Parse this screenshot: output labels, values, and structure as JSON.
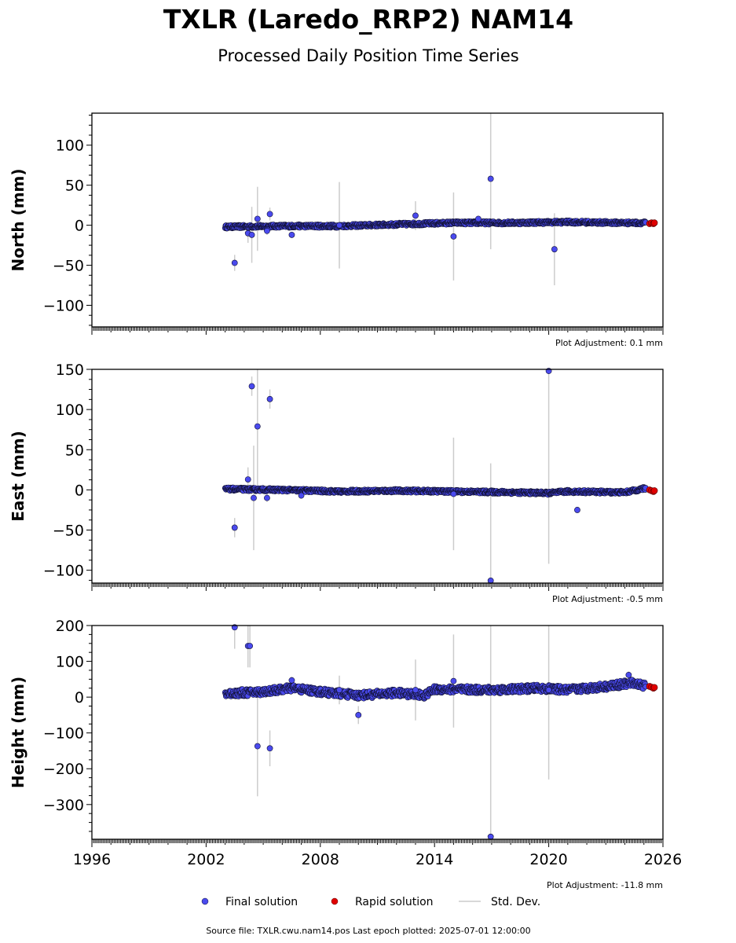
{
  "title": "TXLR (Laredo_RRP2) NAM14",
  "subtitle": "Processed Daily Position Time Series",
  "source_text": "Source file: TXLR.cwu.nam14.pos  Last epoch plotted: 2025-07-01 12:00:00",
  "legend": {
    "final_label": "Final solution",
    "rapid_label": "Rapid solution",
    "std_label": "Std. Dev."
  },
  "colors": {
    "final": "#4a4aee",
    "rapid": "#e00000",
    "std": "#cccccc",
    "point_edge": "#111133"
  },
  "chart_data": [
    {
      "type": "scatter",
      "ylabel": "North (mm)",
      "adjustment": "Plot Adjustment: 0.1 mm",
      "xlim": [
        1996,
        2026
      ],
      "ylim": [
        -127,
        140
      ],
      "yticks": [
        -100,
        -50,
        0,
        50,
        100
      ],
      "ytick_labels": [
        "−100",
        "−50",
        "0",
        "50",
        "100"
      ],
      "trend": [
        [
          2003.0,
          -2
        ],
        [
          2006.0,
          -1
        ],
        [
          2009.0,
          -1
        ],
        [
          2012.0,
          1
        ],
        [
          2015.0,
          3
        ],
        [
          2018.0,
          3
        ],
        [
          2021.0,
          4
        ],
        [
          2024.0,
          3
        ],
        [
          2025.1,
          3
        ]
      ],
      "outliers": [
        {
          "x": 2003.5,
          "y": -47,
          "err": 10
        },
        {
          "x": 2004.2,
          "y": -10,
          "err": 12
        },
        {
          "x": 2004.4,
          "y": -12,
          "err": 35
        },
        {
          "x": 2004.7,
          "y": 8,
          "err": 40
        },
        {
          "x": 2005.2,
          "y": -7,
          "err": 5
        },
        {
          "x": 2005.35,
          "y": 14,
          "err": 8
        },
        {
          "x": 2006.5,
          "y": -12,
          "err": 4
        },
        {
          "x": 2009.0,
          "y": 0,
          "err": 54
        },
        {
          "x": 2013.0,
          "y": 12,
          "err": 18
        },
        {
          "x": 2015.0,
          "y": -14,
          "err": 55
        },
        {
          "x": 2016.3,
          "y": 8,
          "err": 4
        },
        {
          "x": 2016.95,
          "y": 58,
          "err": 88
        },
        {
          "x": 2020.3,
          "y": -30,
          "err": 45
        }
      ],
      "band_std": 2,
      "rapid": [
        [
          2025.3,
          2
        ],
        [
          2025.4,
          3
        ],
        [
          2025.5,
          2
        ],
        [
          2025.55,
          3
        ]
      ]
    },
    {
      "type": "scatter",
      "ylabel": "East (mm)",
      "adjustment": "Plot Adjustment: -0.5 mm",
      "xlim": [
        1996,
        2026
      ],
      "ylim": [
        -116,
        150
      ],
      "yticks": [
        -100,
        -50,
        0,
        50,
        100,
        150
      ],
      "ytick_labels": [
        "−100",
        "−50",
        "0",
        "50",
        "100",
        "150"
      ],
      "trend": [
        [
          2003.0,
          1
        ],
        [
          2006.0,
          0
        ],
        [
          2009.0,
          -2
        ],
        [
          2012.0,
          -1
        ],
        [
          2015.0,
          -2
        ],
        [
          2018.0,
          -3
        ],
        [
          2020.0,
          -4
        ],
        [
          2021.0,
          -2
        ],
        [
          2024.0,
          -3
        ],
        [
          2025.1,
          2
        ]
      ],
      "outliers": [
        {
          "x": 2003.5,
          "y": -47,
          "err": 12
        },
        {
          "x": 2004.2,
          "y": 13,
          "err": 15
        },
        {
          "x": 2004.4,
          "y": 129,
          "err": 12
        },
        {
          "x": 2004.5,
          "y": -10,
          "err": 65
        },
        {
          "x": 2004.7,
          "y": 79,
          "err": 75
        },
        {
          "x": 2005.2,
          "y": -10,
          "err": 5
        },
        {
          "x": 2005.35,
          "y": 113,
          "err": 12
        },
        {
          "x": 2007.0,
          "y": -7,
          "err": 4
        },
        {
          "x": 2015.0,
          "y": -5,
          "err": 70
        },
        {
          "x": 2016.95,
          "y": -113,
          "err": 146
        },
        {
          "x": 2020.0,
          "y": 148,
          "err": 240
        },
        {
          "x": 2021.5,
          "y": -25,
          "err": 4
        }
      ],
      "band_std": 2,
      "rapid": [
        [
          2025.3,
          0
        ],
        [
          2025.4,
          -1
        ],
        [
          2025.5,
          -2
        ],
        [
          2025.55,
          -1
        ]
      ]
    },
    {
      "type": "scatter",
      "ylabel": "Height (mm)",
      "adjustment": "Plot Adjustment: -11.8 mm",
      "xlim": [
        1996,
        2026
      ],
      "ylim": [
        -397,
        200
      ],
      "yticks": [
        -300,
        -200,
        -100,
        0,
        100,
        200
      ],
      "ytick_labels": [
        "−300",
        "−200",
        "−100",
        "0",
        "100",
        "200"
      ],
      "xticks": [
        1996,
        2002,
        2008,
        2014,
        2020,
        2026
      ],
      "xtick_labels": [
        "1996",
        "2002",
        "2008",
        "2014",
        "2020",
        "2026"
      ],
      "trend": [
        [
          2003.0,
          10
        ],
        [
          2005.0,
          15
        ],
        [
          2006.5,
          25
        ],
        [
          2008.0,
          15
        ],
        [
          2010.0,
          5
        ],
        [
          2012.0,
          12
        ],
        [
          2013.5,
          5
        ],
        [
          2014.0,
          22
        ],
        [
          2017.0,
          20
        ],
        [
          2019.5,
          25
        ],
        [
          2021.0,
          20
        ],
        [
          2023.0,
          30
        ],
        [
          2024.5,
          40
        ],
        [
          2025.1,
          30
        ]
      ],
      "outliers": [
        {
          "x": 2003.5,
          "y": 195,
          "err": 60
        },
        {
          "x": 2004.2,
          "y": 143,
          "err": 60
        },
        {
          "x": 2004.3,
          "y": 143,
          "err": 60
        },
        {
          "x": 2004.7,
          "y": -137,
          "err": 140
        },
        {
          "x": 2005.35,
          "y": -143,
          "err": 50
        },
        {
          "x": 2006.5,
          "y": 47,
          "err": 10
        },
        {
          "x": 2009.0,
          "y": 20,
          "err": 40
        },
        {
          "x": 2010.0,
          "y": -50,
          "err": 25
        },
        {
          "x": 2013.0,
          "y": 20,
          "err": 85
        },
        {
          "x": 2015.0,
          "y": 45,
          "err": 130
        },
        {
          "x": 2016.95,
          "y": -390,
          "err": 600
        },
        {
          "x": 2020.0,
          "y": 20,
          "err": 250
        },
        {
          "x": 2024.2,
          "y": 62,
          "err": 10
        }
      ],
      "band_std": 10,
      "rapid": [
        [
          2025.3,
          30
        ],
        [
          2025.4,
          28
        ],
        [
          2025.5,
          25
        ],
        [
          2025.55,
          27
        ]
      ]
    }
  ]
}
